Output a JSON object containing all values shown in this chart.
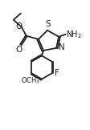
{
  "background": "#ffffff",
  "line_color": "#222222",
  "lw": 1.3,
  "figsize": [
    1.12,
    1.62
  ],
  "dpi": 100,
  "xlim": [
    0,
    11
  ],
  "ylim": [
    0,
    15
  ]
}
